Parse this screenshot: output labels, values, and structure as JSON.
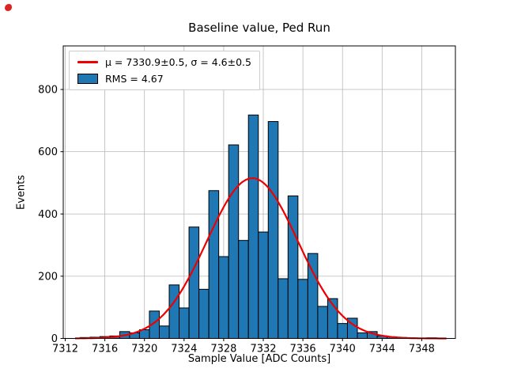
{
  "figure": {
    "background": "#ffffff"
  },
  "chart_data": {
    "type": "bar",
    "subtype": "histogram-with-gaussian-fit",
    "title": "Baseline value, Ped Run",
    "xlabel": "Sample Value [ADC Counts]",
    "ylabel": "Events",
    "xlim": [
      7311.8,
      7351.4
    ],
    "ylim": [
      0,
      940
    ],
    "xticks": [
      7312,
      7316,
      7320,
      7324,
      7328,
      7332,
      7336,
      7340,
      7344,
      7348
    ],
    "yticks": [
      0,
      200,
      400,
      600,
      800
    ],
    "grid": true,
    "first_bin": 7314,
    "bin_width": 1,
    "values": [
      3,
      4,
      6,
      8,
      22,
      18,
      28,
      88,
      40,
      172,
      98,
      358,
      158,
      475,
      263,
      622,
      315,
      718,
      342,
      697,
      192,
      458,
      190,
      273,
      103,
      128,
      48,
      65,
      18,
      22,
      8,
      5,
      3,
      1,
      1,
      2
    ],
    "curve": {
      "mu": 7330.9,
      "sigma": 4.6,
      "amplitude": 515,
      "x_start": 7313,
      "x_end": 7350.5
    },
    "colors": {
      "bar": "#1f77b4",
      "bar_edge": "#000000",
      "curve": "#ee0000",
      "grid": "#b8b8b8",
      "spine": "#000000"
    },
    "legend": {
      "position": "upper-left",
      "items": [
        {
          "swatch": "line",
          "label": "μ = 7330.9±0.5, σ = 4.6±0.5"
        },
        {
          "swatch": "patch",
          "label": "RMS = 4.67"
        }
      ]
    }
  }
}
